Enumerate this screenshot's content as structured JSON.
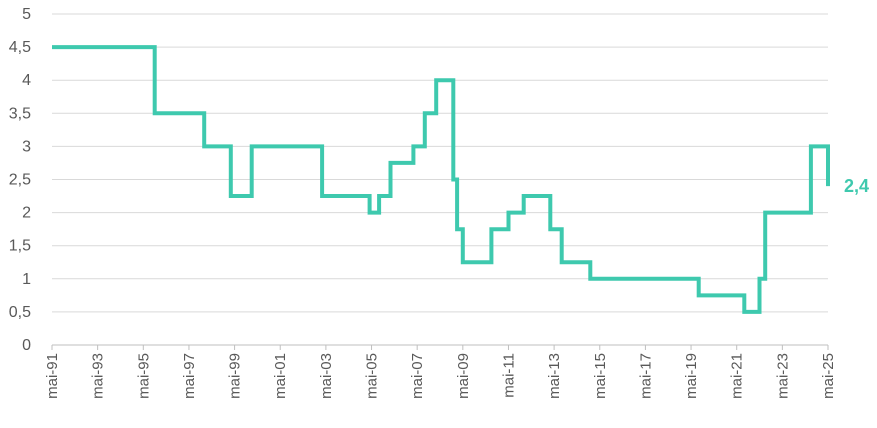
{
  "chart_data": {
    "type": "line",
    "title": "",
    "xlabel": "",
    "ylabel": "",
    "ylim": [
      0,
      5
    ],
    "y_ticks": [
      "0",
      "0,5",
      "1",
      "1,5",
      "2",
      "2,5",
      "3",
      "3,5",
      "4",
      "4,5",
      "5"
    ],
    "x_ticks": [
      "mai-91",
      "mai-93",
      "mai-95",
      "mai-97",
      "mai-99",
      "mai-01",
      "mai-03",
      "mai-05",
      "mai-07",
      "mai-09",
      "mai-11",
      "mai-13",
      "mai-15",
      "mai-17",
      "mai-19",
      "mai-21",
      "mai-23",
      "mai-25"
    ],
    "x_range": [
      "1991-05",
      "2025-05"
    ],
    "grid": "horizontal",
    "line_color": "#3ec9ae",
    "end_label": "2,4",
    "series": [
      {
        "step": true,
        "x": [
          "1991-05",
          "1995-11",
          "1998-01",
          "1999-03",
          "2000-02",
          "2003-03",
          "2005-04",
          "2005-09",
          "2006-03",
          "2007-03",
          "2007-09",
          "2008-03",
          "2008-12",
          "2009-02",
          "2009-05",
          "2010-08",
          "2011-05",
          "2012-01",
          "2013-03",
          "2013-09",
          "2014-12",
          "2019-09",
          "2021-09",
          "2022-05",
          "2022-08",
          "2024-08",
          "2025-05"
        ],
        "y": [
          4.5,
          3.5,
          3.0,
          2.25,
          3.0,
          2.25,
          2.0,
          2.25,
          2.75,
          3.0,
          3.5,
          4.0,
          2.5,
          1.75,
          1.25,
          1.75,
          2.0,
          2.25,
          1.75,
          1.25,
          1.0,
          0.75,
          0.5,
          1.0,
          2.0,
          3.0,
          2.4
        ]
      }
    ]
  }
}
